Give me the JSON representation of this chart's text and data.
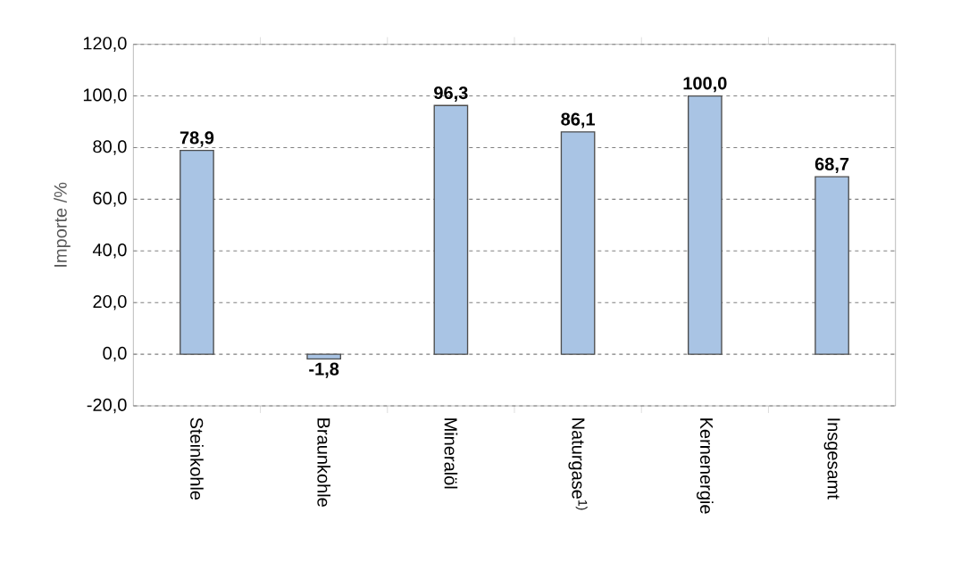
{
  "chart_data": {
    "type": "bar",
    "ylabel": "Importe /%",
    "categories": [
      "Steinkohle",
      "Braunkohle",
      "Mineralöl",
      "Naturgase$^{1)}$",
      "Kernenergie",
      "Insgesamt"
    ],
    "values": [
      78.9,
      -1.8,
      96.3,
      86.1,
      100.0,
      68.7
    ],
    "value_labels": [
      "78,9",
      "-1,8",
      "96,3",
      "86,1",
      "100,0",
      "68,7"
    ],
    "color": "#a9c4e4",
    "ylim": [
      -20,
      120
    ],
    "yticks": [
      {
        "value": -20,
        "label": "-20,0"
      },
      {
        "value": 0,
        "label": "0,0"
      },
      {
        "value": 20,
        "label": "20,0"
      },
      {
        "value": 40,
        "label": "40,0"
      },
      {
        "value": 60,
        "label": "60,0"
      },
      {
        "value": 80,
        "label": "80,0"
      },
      {
        "value": 100,
        "label": "100,0"
      },
      {
        "value": 120,
        "label": "120,0"
      }
    ],
    "grid": "y"
  }
}
